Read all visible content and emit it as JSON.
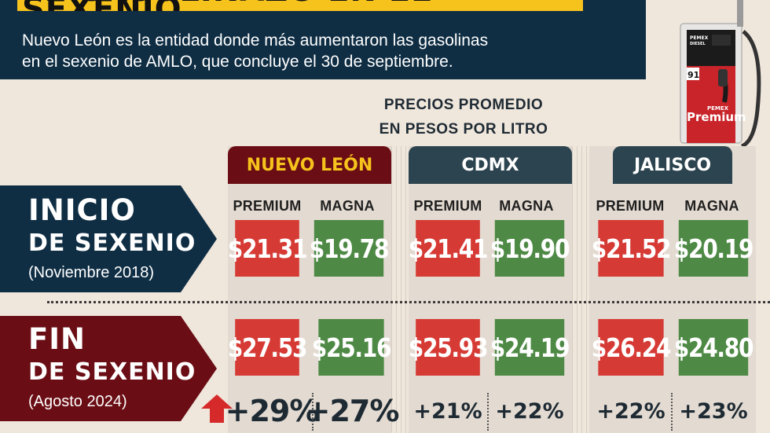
{
  "headline": "EL GASOLINAZO EN EL SEXENIO",
  "subtitle_line1": "Nuevo León es la entidad donde más aumentaron las gasolinas",
  "subtitle_line2": "en el sexenio de AMLO, que concluye el 30 de septiembre.",
  "caption_line1": "PRECIOS PROMEDIO",
  "caption_line2": "EN PESOS POR LITRO",
  "pump": {
    "brand": "PEMEX",
    "product": "Premium",
    "octane": "91",
    "diesel_label": "PEMEX DIESEL"
  },
  "rows": {
    "start": {
      "title1": "INICIO",
      "title2": "DE SEXENIO",
      "note": "(Noviembre 2018)"
    },
    "end": {
      "title1": "FIN",
      "title2": "DE SEXENIO",
      "note": "(Agosto 2024)"
    }
  },
  "states": [
    {
      "name": "NUEVO LEÓN",
      "premium_label": "PREMIUM",
      "magna_label": "MAGNA",
      "start_premium": "$21.31",
      "start_magna": "$19.78",
      "end_premium": "$27.53",
      "end_magna": "$25.16",
      "pct_premium": "+29%",
      "pct_magna": "+27%"
    },
    {
      "name": "CDMX",
      "premium_label": "PREMIUM",
      "magna_label": "MAGNA",
      "start_premium": "$21.41",
      "start_magna": "$19.90",
      "end_premium": "$25.93",
      "end_magna": "$24.19",
      "pct_premium": "+21%",
      "pct_magna": "+22%"
    },
    {
      "name": "JALISCO",
      "premium_label": "PREMIUM",
      "magna_label": "MAGNA",
      "start_premium": "$21.52",
      "start_magna": "$20.19",
      "end_premium": "$26.24",
      "end_magna": "$24.80",
      "pct_premium": "+22%",
      "pct_magna": "+23%"
    }
  ],
  "colors": {
    "navy": "#0f2e44",
    "headline_yellow": "#f6c21c",
    "premium_red": "#d63a35",
    "magna_green": "#4e8a45",
    "nuevo_leon_maroon": "#6a0d14",
    "tab_slate": "#2c444f",
    "background": "#efe6dc"
  }
}
